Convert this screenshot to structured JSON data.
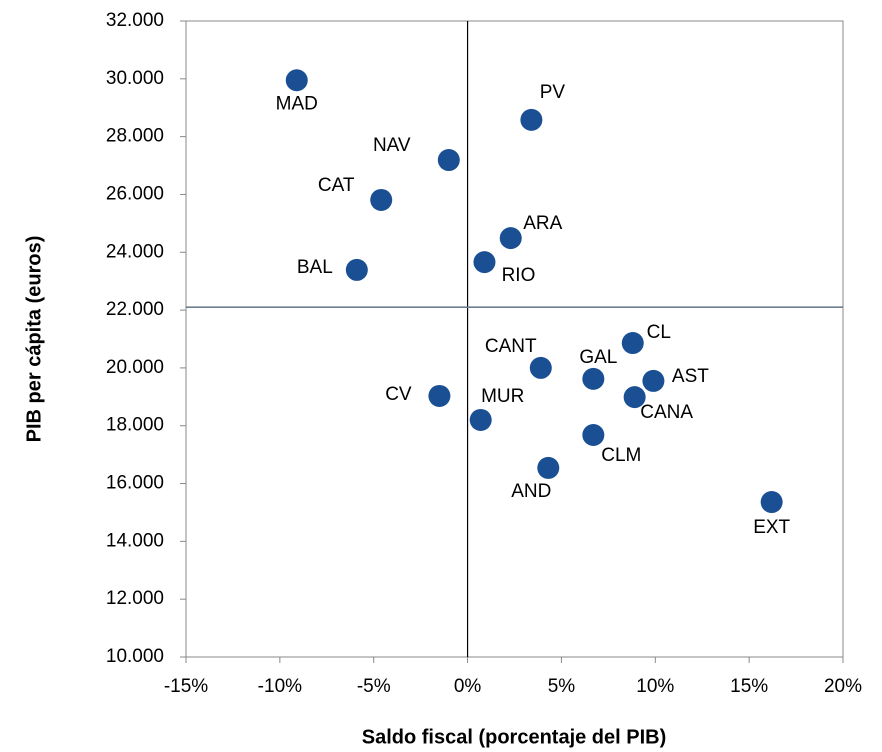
{
  "chart_data": {
    "type": "scatter",
    "xlabel": "Saldo fiscal (porcentaje del PIB)",
    "ylabel": "PIB per cápita (euros)",
    "labels": [
      "MAD",
      "PV",
      "NAV",
      "CAT",
      "ARA",
      "RIO",
      "BAL",
      "CL",
      "CANT",
      "GAL",
      "AST",
      "CV",
      "CANA",
      "MUR",
      "CLM",
      "AND",
      "EXT"
    ],
    "x": [
      -9.1,
      3.4,
      -1.0,
      -4.6,
      2.3,
      0.9,
      -5.9,
      8.8,
      3.9,
      6.7,
      9.9,
      -1.5,
      8.9,
      0.7,
      6.7,
      4.3,
      16.2
    ],
    "y": [
      29950,
      28580,
      27190,
      25810,
      24490,
      23660,
      23390,
      20860,
      20000,
      19620,
      19550,
      19030,
      18990,
      18200,
      17680,
      16540,
      15360
    ],
    "color": "#1b4f93",
    "xlim": [
      -15,
      20
    ],
    "xticks": [
      {
        "value": -15,
        "label": "-15%"
      },
      {
        "value": -10,
        "label": "-10%"
      },
      {
        "value": -5,
        "label": "-5%"
      },
      {
        "value": 0,
        "label": "0%"
      },
      {
        "value": 5,
        "label": "5%"
      },
      {
        "value": 10,
        "label": "10%"
      },
      {
        "value": 15,
        "label": "15%"
      },
      {
        "value": 20,
        "label": "20%"
      }
    ],
    "ylim": [
      10000,
      32000
    ],
    "yticks": [
      {
        "value": 10000,
        "label": "10.000"
      },
      {
        "value": 12000,
        "label": "12.000"
      },
      {
        "value": 14000,
        "label": "14.000"
      },
      {
        "value": 16000,
        "label": "16.000"
      },
      {
        "value": 18000,
        "label": "18.000"
      },
      {
        "value": 20000,
        "label": "20.000"
      },
      {
        "value": 22000,
        "label": "22.000"
      },
      {
        "value": 24000,
        "label": "24.000"
      },
      {
        "value": 26000,
        "label": "26.000"
      },
      {
        "value": 28000,
        "label": "28.000"
      },
      {
        "value": 30000,
        "label": "30.000"
      },
      {
        "value": 32000,
        "label": "32.000"
      }
    ],
    "reference_x": 0,
    "reference_y": 22100
  }
}
